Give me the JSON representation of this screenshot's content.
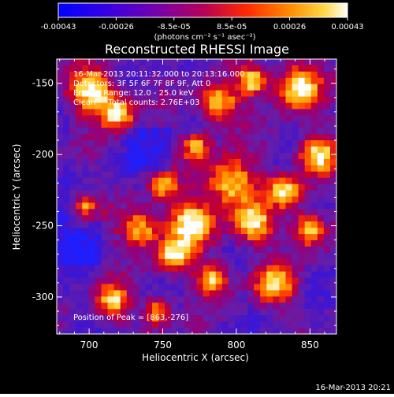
{
  "colorbar": {
    "tick_labels": [
      "-0.00043",
      "-0.00026",
      "-8.5e-05",
      "8.5e-05",
      "0.00026",
      "0.00043"
    ],
    "unit_label": "(photons cm⁻² s⁻¹ asec⁻²)",
    "colors": [
      "#1a1aff",
      "#4b00d8",
      "#7a00b8",
      "#a8008a",
      "#d8004a",
      "#ff2a00",
      "#ff7a00",
      "#ffc000",
      "#ffffff"
    ]
  },
  "plot": {
    "title": "Reconstructed RHESSI Image",
    "xlabel": "Heliocentric X (arcsec)",
    "ylabel": "Heliocentric Y (arcsec)",
    "x_ticks": [
      "700",
      "750",
      "800",
      "850"
    ],
    "y_ticks": [
      "-150",
      "-200",
      "-250",
      "-300"
    ],
    "info_lines": [
      "16-Mar-2013 20:11:32.000 to 20:13:16.000",
      "Detectors: 3F 5F 6F 7F 8F 9F, Att 0",
      "Energy Range: 12.0 - 25.0 keV",
      "Clean     Total counts: 2.76E+03"
    ],
    "peak_text": "Position of Peak = [863,-276]",
    "timestamp": "16-Mar-2013 20:21"
  },
  "chart_data": {
    "type": "heatmap",
    "title": "Reconstructed RHESSI Image",
    "xlabel": "Heliocentric X (arcsec)",
    "ylabel": "Heliocentric Y (arcsec)",
    "xlim": [
      678,
      868
    ],
    "ylim": [
      -326,
      -133
    ],
    "colorbar_range": [
      -0.00043,
      0.00043
    ],
    "peak": [
      863,
      -276
    ]
  }
}
